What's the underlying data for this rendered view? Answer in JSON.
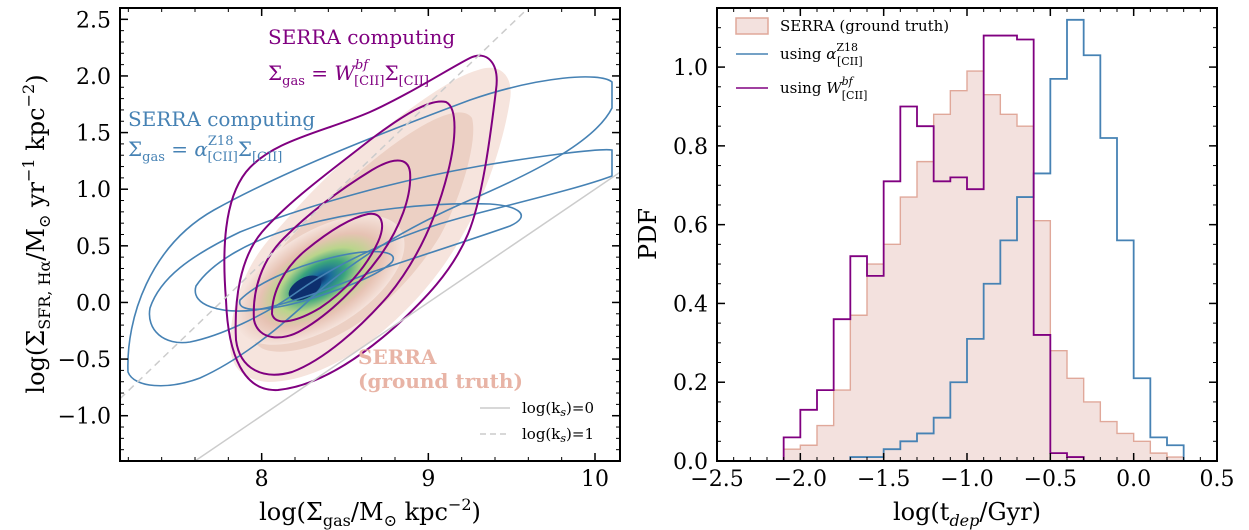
{
  "chart_data": [
    {
      "type": "contour",
      "xlabel": "log(Σgas/M⊙ kpc−2)",
      "ylabel": "log(ΣSFR, Hα/M⊙ yr−1 kpc−2)",
      "xlim": [
        7.15,
        10.15
      ],
      "ylim": [
        -1.4,
        2.6
      ],
      "xticks": [
        8,
        9,
        10
      ],
      "yticks": [
        -1.0,
        -0.5,
        0.0,
        0.5,
        1.0,
        1.5,
        2.0,
        2.5
      ],
      "ytick_labels": [
        "−1.0",
        "−0.5",
        "0.0",
        "0.5",
        "1.0",
        "1.5",
        "2.0",
        "2.5"
      ],
      "grid": false,
      "lines": [
        {
          "label": "log(k_s)=0",
          "color": "#cccccc",
          "style": "solid",
          "points": [
            [
              7.6,
              -1.4
            ],
            [
              10.15,
              1.15
            ]
          ]
        },
        {
          "label": "log(k_s)=1",
          "color": "#cccccc",
          "style": "dashed",
          "points": [
            [
              7.15,
              -0.85
            ],
            [
              9.6,
              2.6
            ]
          ]
        }
      ],
      "legend": {
        "position": "lower-right",
        "entries": [
          "log(k_s)=0",
          "log(k_s)=1"
        ]
      },
      "annotations": [
        {
          "line1": "SERRA computing",
          "line2": "Σgas = W^bf[CII] Σ[CII]",
          "color": "#800080",
          "at": [
            8.55,
            2.33
          ]
        },
        {
          "line1": "SERRA computing",
          "line2": "Σgas = α^Z18[CII] Σ[CII]",
          "color": "#4682b4",
          "at": [
            7.2,
            1.56
          ]
        },
        {
          "line1": "SERRA",
          "line2": "(ground truth)",
          "color": "#e8b4a6",
          "at": [
            8.95,
            -0.6
          ]
        }
      ],
      "series": [
        {
          "name": "SERRA (ground truth)",
          "kind": "filled density",
          "peak": [
            8.28,
            0.12
          ],
          "extent_x": [
            7.95,
            9.3
          ],
          "extent_y": [
            -0.9,
            2.15
          ],
          "colormap": [
            "#f5e3dc",
            "#e6c2b3",
            "#b9d58b",
            "#3aa57c",
            "#1a6a9e",
            "#0d2f6e"
          ]
        },
        {
          "name": "using α^Z18[CII]",
          "kind": "contours",
          "color": "#4682b4",
          "extent_x": [
            7.2,
            10.15
          ],
          "extent_y": [
            -0.75,
            2.05
          ]
        },
        {
          "name": "using W^bf[CII]",
          "kind": "contours",
          "color": "#800080",
          "extent_x": [
            7.8,
            9.4
          ],
          "extent_y": [
            -0.8,
            2.1
          ]
        }
      ]
    },
    {
      "type": "histogram",
      "xlabel": "log(t_dep/Gyr)",
      "ylabel": "PDF",
      "xlim": [
        -2.5,
        0.5
      ],
      "ylim": [
        0.0,
        1.15
      ],
      "xticks": [
        -2.5,
        -2.0,
        -1.5,
        -1.0,
        -0.5,
        0.0,
        0.5
      ],
      "xtick_labels": [
        "−2.5",
        "−2.0",
        "−1.5",
        "−1.0",
        "−0.5",
        "0.0",
        "0.5"
      ],
      "yticks": [
        0.0,
        0.2,
        0.4,
        0.6,
        0.8,
        1.0
      ],
      "ytick_labels": [
        "0.0",
        "0.2",
        "0.4",
        "0.6",
        "0.8",
        "1.0"
      ],
      "grid": false,
      "bin_edges": [
        -2.2,
        -2.1,
        -2.0,
        -1.9,
        -1.8,
        -1.7,
        -1.6,
        -1.5,
        -1.4,
        -1.3,
        -1.2,
        -1.1,
        -1.0,
        -0.9,
        -0.8,
        -0.7,
        -0.6,
        -0.5,
        -0.4,
        -0.3,
        -0.2,
        -0.1,
        0.0,
        0.1,
        0.2,
        0.3
      ],
      "legend": {
        "position": "top-left"
      },
      "series": [
        {
          "name": "SERRA (ground truth)",
          "color": "#e0a89a",
          "fill": "#f3e1de",
          "values": [
            0.0,
            0.03,
            0.04,
            0.09,
            0.18,
            0.37,
            0.5,
            0.55,
            0.67,
            0.76,
            0.88,
            0.94,
            0.99,
            0.93,
            0.88,
            0.85,
            0.61,
            0.28,
            0.21,
            0.15,
            0.1,
            0.07,
            0.05,
            0.02,
            0.01
          ]
        },
        {
          "name": "using α^Z18[CII]",
          "color": "#4682b4",
          "values": [
            0.0,
            0.0,
            0.0,
            0.0,
            0.0,
            0.01,
            0.01,
            0.03,
            0.05,
            0.07,
            0.11,
            0.2,
            0.31,
            0.45,
            0.56,
            0.67,
            0.73,
            0.97,
            1.12,
            1.03,
            0.82,
            0.56,
            0.21,
            0.06,
            0.04
          ]
        },
        {
          "name": "using W^bf[CII]",
          "color": "#800080",
          "values": [
            0.0,
            0.06,
            0.13,
            0.18,
            0.36,
            0.52,
            0.47,
            0.71,
            0.9,
            0.85,
            0.71,
            0.72,
            0.69,
            1.08,
            1.08,
            1.07,
            0.32,
            0.02,
            0.01,
            0.0,
            0.0,
            0.0,
            0.0,
            0.0,
            0.0
          ]
        }
      ]
    }
  ]
}
